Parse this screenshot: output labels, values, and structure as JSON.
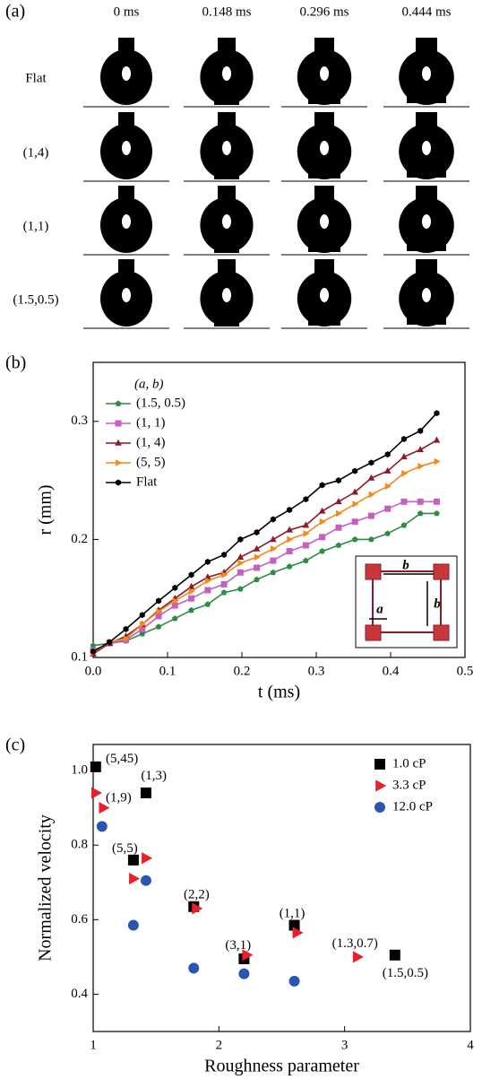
{
  "panel_a": {
    "label": "(a)",
    "columns": [
      "0 ms",
      "0.148 ms",
      "0.296 ms",
      "0.444 ms"
    ],
    "rows": [
      "Flat",
      "(1,4)",
      "(1,1)",
      "(1.5,0.5)"
    ]
  },
  "chart_data": [
    {
      "type": "line",
      "panel_label": "(b)",
      "xlabel": "t (ms)",
      "ylabel": "r (mm)",
      "legend_title": "(a, b)",
      "inset_labels": [
        "b",
        "a",
        "b"
      ],
      "x": [
        0,
        0.022,
        0.044,
        0.066,
        0.088,
        0.11,
        0.132,
        0.154,
        0.176,
        0.198,
        0.22,
        0.242,
        0.264,
        0.286,
        0.308,
        0.33,
        0.352,
        0.374,
        0.396,
        0.418,
        0.44,
        0.462
      ],
      "series": [
        {
          "name": "(1.5, 0.5)",
          "color": "#2e8b45",
          "marker": "pentagon",
          "values": [
            0.11,
            0.112,
            0.114,
            0.12,
            0.126,
            0.133,
            0.14,
            0.145,
            0.155,
            0.158,
            0.166,
            0.172,
            0.177,
            0.182,
            0.19,
            0.195,
            0.2,
            0.2,
            0.205,
            0.212,
            0.222,
            0.222
          ]
        },
        {
          "name": "(1, 1)",
          "color": "#c660c0",
          "marker": "square",
          "values": [
            0.106,
            0.112,
            0.115,
            0.124,
            0.135,
            0.144,
            0.15,
            0.157,
            0.162,
            0.172,
            0.176,
            0.182,
            0.19,
            0.195,
            0.202,
            0.21,
            0.215,
            0.22,
            0.226,
            0.232,
            0.232,
            0.232
          ]
        },
        {
          "name": "(1, 4)",
          "color": "#8b1a2b",
          "marker": "triangle-up",
          "values": [
            0.103,
            0.112,
            0.118,
            0.128,
            0.14,
            0.15,
            0.16,
            0.168,
            0.172,
            0.185,
            0.192,
            0.2,
            0.208,
            0.212,
            0.224,
            0.232,
            0.24,
            0.252,
            0.258,
            0.27,
            0.276,
            0.284
          ]
        },
        {
          "name": "(5, 5)",
          "color": "#f28a1c",
          "marker": "triangle-right",
          "values": [
            0.104,
            0.113,
            0.116,
            0.128,
            0.139,
            0.148,
            0.156,
            0.165,
            0.17,
            0.18,
            0.185,
            0.192,
            0.2,
            0.205,
            0.215,
            0.222,
            0.23,
            0.238,
            0.245,
            0.256,
            0.262,
            0.266
          ]
        },
        {
          "name": "Flat",
          "color": "#000000",
          "marker": "hexagon",
          "values": [
            0.105,
            0.113,
            0.124,
            0.136,
            0.148,
            0.159,
            0.17,
            0.181,
            0.187,
            0.2,
            0.206,
            0.217,
            0.225,
            0.234,
            0.246,
            0.25,
            0.258,
            0.265,
            0.272,
            0.285,
            0.292,
            0.307
          ]
        }
      ],
      "xlim": [
        0,
        0.5
      ],
      "xticks": [
        {
          "value": 0,
          "label": "0.0"
        },
        0.1,
        0.2,
        0.3,
        0.4,
        0.5
      ],
      "ylim": [
        0.1,
        0.35
      ],
      "yticks": [
        0.1,
        0.2,
        0.3
      ],
      "grid": false
    },
    {
      "type": "scatter",
      "panel_label": "(c)",
      "xlabel": "Roughness parameter",
      "ylabel": "Normalized velocity",
      "legend": "upper right",
      "series": [
        {
          "name": "1.0 cP",
          "color": "#000000",
          "marker": "square",
          "x": [
            1.02,
            1.42,
            1.32,
            1.8,
            2.2,
            2.6,
            3.4
          ],
          "y": [
            1.01,
            0.94,
            0.76,
            0.635,
            0.495,
            0.585,
            0.505
          ]
        },
        {
          "name": "3.3 cP",
          "color": "#e8202a",
          "marker": "triangle-right",
          "x": [
            1.02,
            1.08,
            1.42,
            1.32,
            1.82,
            2.22,
            2.62,
            3.1
          ],
          "y": [
            0.94,
            0.9,
            0.765,
            0.71,
            0.63,
            0.505,
            0.565,
            0.5
          ]
        },
        {
          "name": "12.0 cP",
          "color": "#2a55b0",
          "marker": "circle",
          "x": [
            1.07,
            1.42,
            1.32,
            1.8,
            2.2,
            2.6
          ],
          "y": [
            0.85,
            0.705,
            0.585,
            0.47,
            0.455,
            0.435
          ]
        }
      ],
      "annotations": [
        {
          "text": "(5,45)",
          "x": 1.1,
          "y": 1.03
        },
        {
          "text": "(1,3)",
          "x": 1.38,
          "y": 0.985
        },
        {
          "text": "(1,9)",
          "x": 1.1,
          "y": 0.925
        },
        {
          "text": "(5,5)",
          "x": 1.15,
          "y": 0.79
        },
        {
          "text": "(2,2)",
          "x": 1.72,
          "y": 0.665
        },
        {
          "text": "(3,1)",
          "x": 2.05,
          "y": 0.53
        },
        {
          "text": "(1,1)",
          "x": 2.48,
          "y": 0.615
        },
        {
          "text": "(1.3,0.7)",
          "x": 2.9,
          "y": 0.535
        },
        {
          "text": "(1.5,0.5)",
          "x": 3.3,
          "y": 0.455
        }
      ],
      "xlim": [
        1,
        4
      ],
      "xticks": [
        1,
        2,
        3,
        4
      ],
      "ylim": [
        0.3,
        1.07
      ],
      "yticks": [
        0.4,
        0.6,
        0.8,
        {
          "value": 1,
          "label": "1.0"
        }
      ],
      "grid": false
    }
  ]
}
